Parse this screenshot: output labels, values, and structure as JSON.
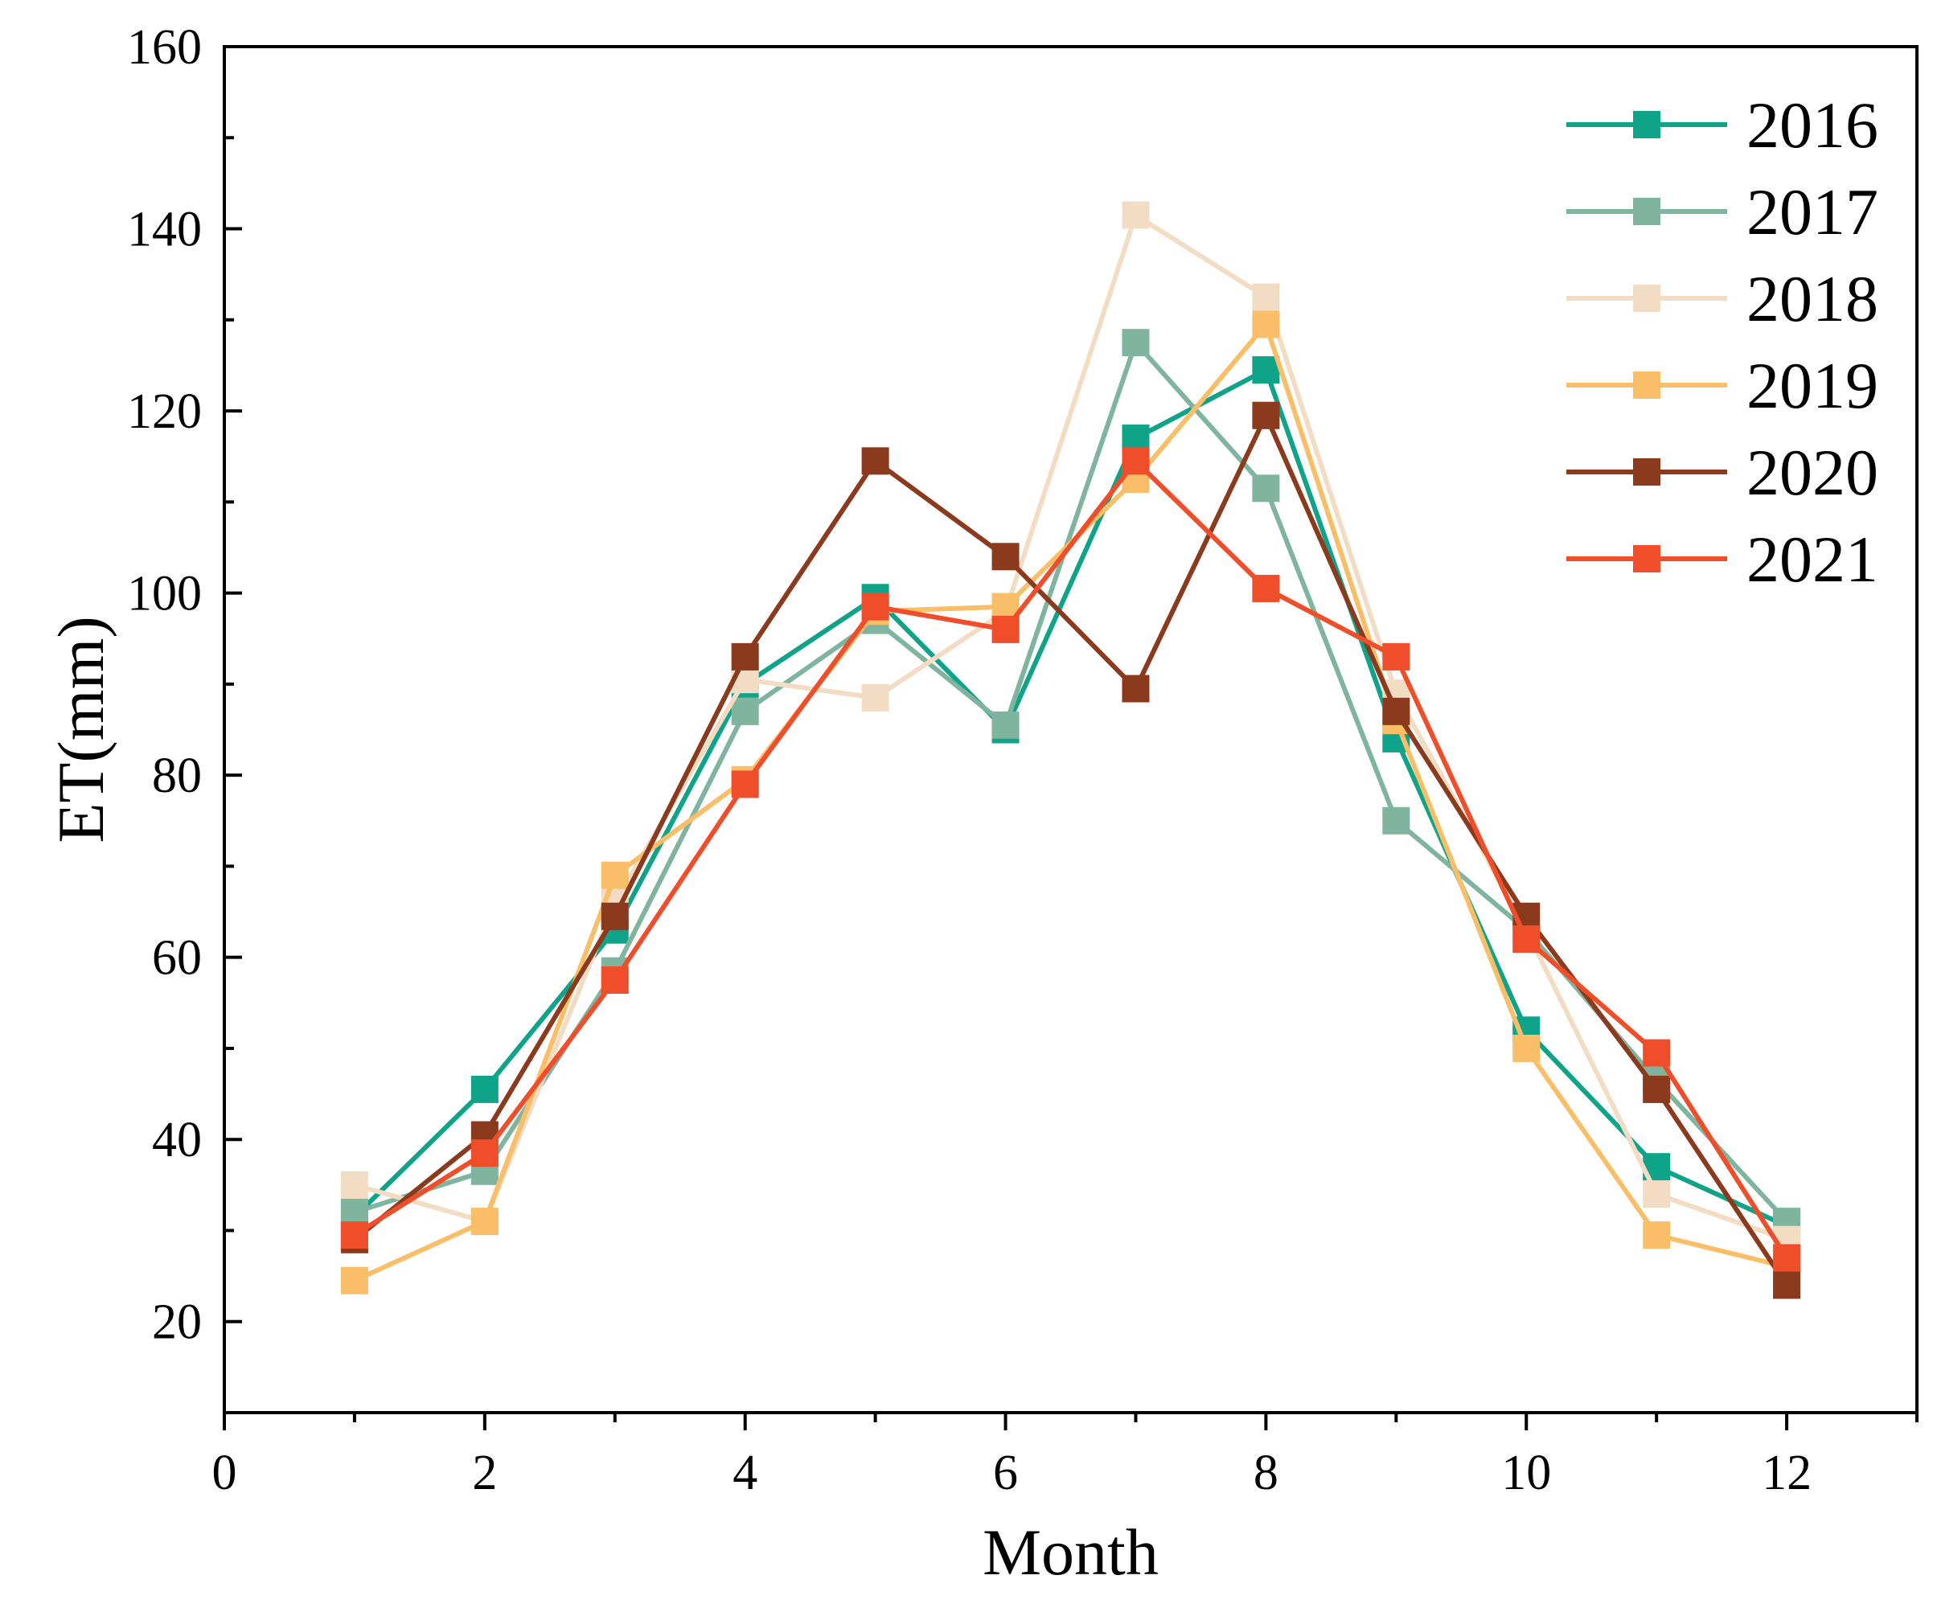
{
  "chart_data": {
    "type": "line",
    "xlabel": "Month",
    "ylabel": "ET(mm)",
    "xlim": [
      0,
      13
    ],
    "ylim": [
      10,
      160
    ],
    "xticks": [
      0,
      2,
      4,
      6,
      8,
      10,
      12
    ],
    "yticks": [
      20,
      40,
      60,
      80,
      100,
      120,
      140,
      160
    ],
    "grid": false,
    "legend_position": "top-right",
    "x": [
      1,
      2,
      3,
      4,
      5,
      6,
      7,
      8,
      9,
      10,
      11,
      12
    ],
    "series": [
      {
        "name": "2016",
        "color": "#0FA38A",
        "values": [
          31.5,
          45.5,
          63,
          90,
          99.5,
          85,
          117,
          124.5,
          84,
          52,
          37,
          30.5
        ]
      },
      {
        "name": "2017",
        "color": "#7FB59F",
        "values": [
          32,
          36.5,
          58.5,
          87,
          97,
          85.5,
          127.5,
          111.5,
          75,
          63,
          46.5,
          31
        ]
      },
      {
        "name": "2018",
        "color": "#F2DCC3",
        "values": [
          35,
          31,
          66,
          90.5,
          88.5,
          98,
          141.5,
          132.5,
          89,
          63,
          34,
          29
        ]
      },
      {
        "name": "2019",
        "color": "#F9BE67",
        "values": [
          24.5,
          31,
          69,
          79.5,
          98,
          98.5,
          112.5,
          129.5,
          86,
          50,
          29.5,
          26
        ]
      },
      {
        "name": "2020",
        "color": "#8B3A1E",
        "values": [
          29,
          40.5,
          64.5,
          93,
          114.5,
          104,
          89.5,
          119.5,
          87,
          64.5,
          45.5,
          24
        ]
      },
      {
        "name": "2021",
        "color": "#F04E2A",
        "values": [
          29.5,
          38.5,
          57.5,
          79,
          98.5,
          96,
          114.5,
          100.5,
          93,
          62,
          49.5,
          27
        ]
      }
    ]
  }
}
